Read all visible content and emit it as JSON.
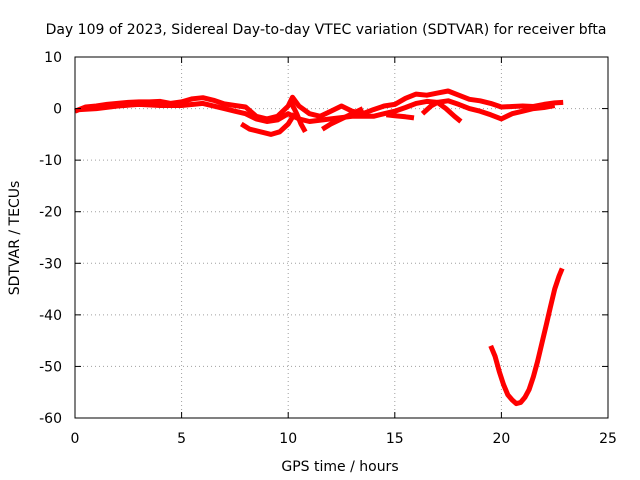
{
  "chart_data": {
    "type": "line",
    "title": "Day 109 of 2023, Sidereal Day-to-day VTEC variation (SDTVAR) for receiver bfta",
    "xlabel": "GPS time / hours",
    "ylabel": "SDTVAR / TECUs",
    "xlim": [
      0,
      25
    ],
    "ylim": [
      -60,
      10
    ],
    "xticks": [
      0,
      5,
      10,
      15,
      20,
      25
    ],
    "yticks": [
      10,
      0,
      -10,
      -20,
      -30,
      -40,
      -50,
      -60
    ],
    "grid": true,
    "series_color": "#ff0000",
    "series": [
      {
        "name": "track-main-upper",
        "points": [
          [
            0,
            -0.5
          ],
          [
            0.5,
            0.3
          ],
          [
            1,
            0.5
          ],
          [
            1.5,
            0.8
          ],
          [
            2,
            1.0
          ],
          [
            2.5,
            1.2
          ],
          [
            3,
            1.3
          ],
          [
            3.5,
            1.3
          ],
          [
            4,
            1.4
          ],
          [
            4.5,
            1.0
          ],
          [
            5,
            1.3
          ],
          [
            5.5,
            1.9
          ],
          [
            6,
            2.1
          ],
          [
            6.5,
            1.6
          ],
          [
            7,
            0.9
          ],
          [
            7.5,
            0.6
          ],
          [
            8,
            0.3
          ],
          [
            8.5,
            -1.5
          ],
          [
            9,
            -2.0
          ],
          [
            9.5,
            -1.5
          ],
          [
            10,
            0.5
          ],
          [
            10.2,
            2.2
          ],
          [
            10.5,
            0.5
          ],
          [
            11,
            -1.0
          ],
          [
            11.5,
            -1.5
          ],
          [
            12,
            -0.5
          ],
          [
            12.5,
            0.5
          ],
          [
            13,
            -0.5
          ],
          [
            13.5,
            -1.0
          ],
          [
            14,
            -0.2
          ],
          [
            14.5,
            0.5
          ],
          [
            15,
            0.8
          ],
          [
            15.5,
            2.0
          ],
          [
            16,
            2.8
          ],
          [
            16.5,
            2.6
          ],
          [
            17,
            3.0
          ],
          [
            17.5,
            3.4
          ],
          [
            18,
            2.6
          ],
          [
            18.5,
            1.8
          ],
          [
            19,
            1.5
          ],
          [
            19.5,
            1.0
          ],
          [
            20,
            0.3
          ],
          [
            20.5,
            0.4
          ],
          [
            21,
            0.5
          ],
          [
            21.5,
            0.4
          ],
          [
            22,
            0.8
          ],
          [
            22.5,
            1.1
          ],
          [
            22.9,
            1.2
          ]
        ]
      },
      {
        "name": "track-main-lower",
        "points": [
          [
            0.2,
            -0.2
          ],
          [
            1,
            0.0
          ],
          [
            2,
            0.5
          ],
          [
            3,
            0.8
          ],
          [
            4,
            0.6
          ],
          [
            5,
            0.6
          ],
          [
            6,
            1.0
          ],
          [
            7,
            0.0
          ],
          [
            7.5,
            -0.5
          ],
          [
            8,
            -1.0
          ],
          [
            8.5,
            -2.0
          ],
          [
            9,
            -2.5
          ],
          [
            9.5,
            -2.2
          ],
          [
            10,
            -1.0
          ],
          [
            10.5,
            -2.0
          ],
          [
            11,
            -2.5
          ],
          [
            12,
            -2.0
          ],
          [
            13,
            -1.5
          ],
          [
            14,
            -1.5
          ],
          [
            14.5,
            -1.0
          ],
          [
            15,
            -0.5
          ],
          [
            15.5,
            0.2
          ],
          [
            16,
            1.0
          ],
          [
            16.5,
            1.4
          ],
          [
            17,
            1.2
          ],
          [
            17.5,
            1.5
          ],
          [
            18,
            0.8
          ],
          [
            18.5,
            0.0
          ],
          [
            19,
            -0.5
          ],
          [
            19.5,
            -1.2
          ],
          [
            20,
            -2.0
          ],
          [
            20.5,
            -1.0
          ],
          [
            21,
            -0.5
          ],
          [
            21.5,
            0.0
          ],
          [
            22,
            0.2
          ],
          [
            22.5,
            0.6
          ]
        ]
      },
      {
        "name": "track-dip-8-10",
        "points": [
          [
            7.8,
            -3.0
          ],
          [
            8.2,
            -4.0
          ],
          [
            8.7,
            -4.5
          ],
          [
            9.2,
            -5.0
          ],
          [
            9.6,
            -4.5
          ],
          [
            10,
            -3.0
          ],
          [
            10.3,
            -1.0
          ]
        ]
      },
      {
        "name": "track-10-11",
        "points": [
          [
            10.1,
            1.5
          ],
          [
            10.4,
            -1.0
          ],
          [
            10.6,
            -3.0
          ],
          [
            10.8,
            -4.5
          ]
        ]
      },
      {
        "name": "track-11-13",
        "points": [
          [
            11.6,
            -4.0
          ],
          [
            12,
            -3.0
          ],
          [
            12.5,
            -2.0
          ],
          [
            13,
            -1.0
          ],
          [
            13.5,
            0.0
          ]
        ]
      },
      {
        "name": "track-14-16",
        "points": [
          [
            14.6,
            -1.2
          ],
          [
            15,
            -1.4
          ],
          [
            15.5,
            -1.6
          ],
          [
            15.9,
            -1.8
          ]
        ]
      },
      {
        "name": "track-16-18",
        "points": [
          [
            16.3,
            -1.0
          ],
          [
            16.7,
            0.5
          ],
          [
            17,
            1.2
          ],
          [
            17.4,
            0.0
          ],
          [
            17.8,
            -1.5
          ],
          [
            18.1,
            -2.5
          ]
        ]
      },
      {
        "name": "track-evening-v",
        "points": [
          [
            19.5,
            -46.0
          ],
          [
            19.7,
            -48.0
          ],
          [
            19.9,
            -51.0
          ],
          [
            20.1,
            -53.5
          ],
          [
            20.3,
            -55.5
          ],
          [
            20.5,
            -56.5
          ],
          [
            20.7,
            -57.2
          ],
          [
            20.9,
            -57.0
          ],
          [
            21.1,
            -56.0
          ],
          [
            21.3,
            -54.5
          ],
          [
            21.5,
            -52.0
          ],
          [
            21.7,
            -49.0
          ],
          [
            21.9,
            -45.5
          ],
          [
            22.1,
            -42.0
          ],
          [
            22.3,
            -38.5
          ],
          [
            22.5,
            -35.0
          ],
          [
            22.7,
            -32.5
          ],
          [
            22.85,
            -31.0
          ]
        ]
      }
    ]
  }
}
